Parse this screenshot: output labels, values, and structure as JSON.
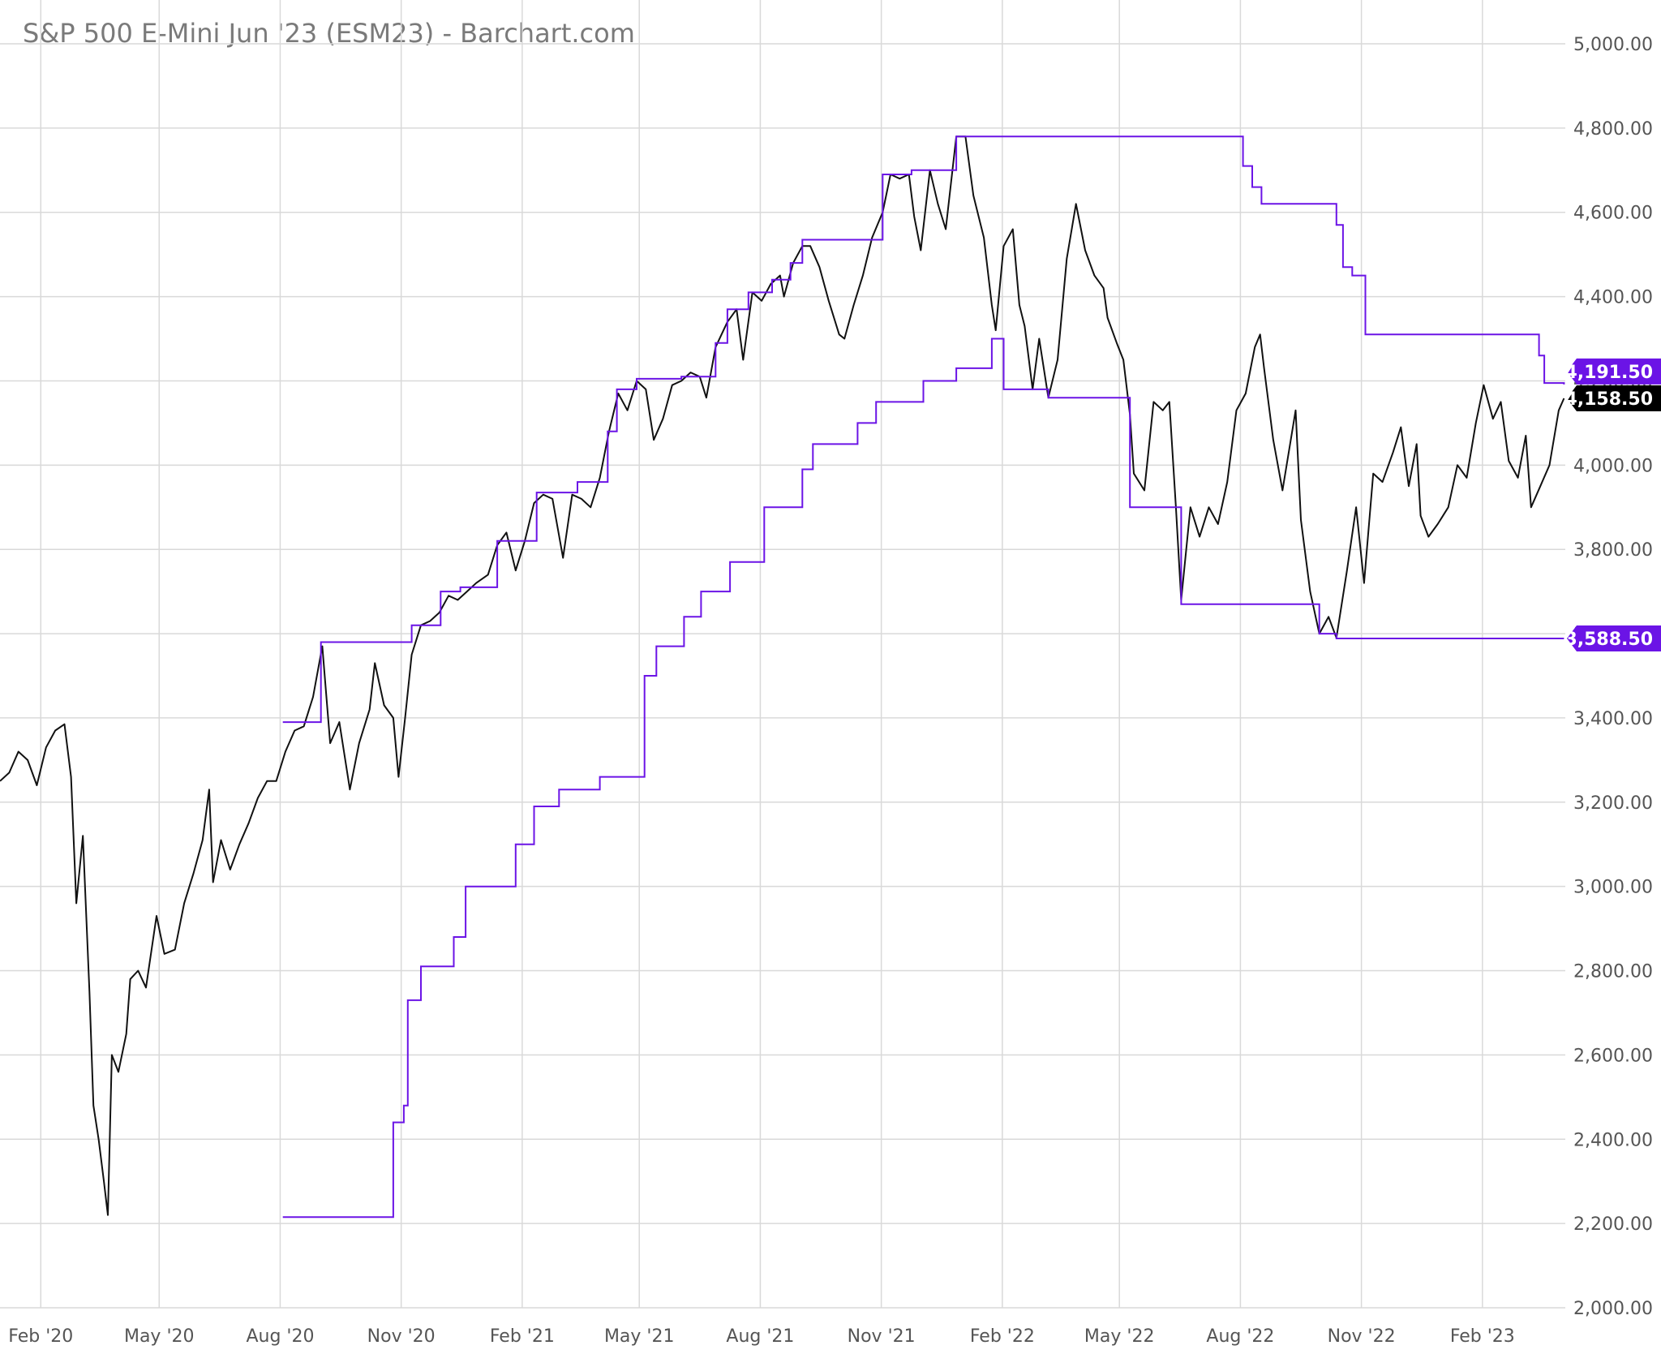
{
  "chart_data": {
    "type": "line",
    "title": "S&P 500 E-Mini Jun '23 (ESM23) - Barchart.com",
    "xlabel": "",
    "ylabel": "",
    "x_range": [
      "2020-01-01",
      "2023-04-05"
    ],
    "ylim": [
      2000,
      5000
    ],
    "y_ticks": [
      "2,000.00",
      "2,200.00",
      "2,400.00",
      "2,600.00",
      "2,800.00",
      "3,000.00",
      "3,200.00",
      "3,400.00",
      "3,600.00",
      "3,800.00",
      "4,000.00",
      "4,200.00",
      "4,400.00",
      "4,600.00",
      "4,800.00",
      "5,000.00"
    ],
    "x_ticks": [
      {
        "date": "2020-02-01",
        "label": "Feb '20"
      },
      {
        "date": "2020-05-01",
        "label": "May '20"
      },
      {
        "date": "2020-08-01",
        "label": "Aug '20"
      },
      {
        "date": "2020-11-01",
        "label": "Nov '20"
      },
      {
        "date": "2021-02-01",
        "label": "Feb '21"
      },
      {
        "date": "2021-05-01",
        "label": "May '21"
      },
      {
        "date": "2021-08-01",
        "label": "Aug '21"
      },
      {
        "date": "2021-11-01",
        "label": "Nov '21"
      },
      {
        "date": "2022-02-01",
        "label": "Feb '22"
      },
      {
        "date": "2022-05-01",
        "label": "May '22"
      },
      {
        "date": "2022-08-01",
        "label": "Aug '22"
      },
      {
        "date": "2022-11-01",
        "label": "Nov '22"
      },
      {
        "date": "2023-02-01",
        "label": "Feb '23"
      }
    ],
    "grid": true,
    "series": [
      {
        "name": "",
        "color": "#111111",
        "points": [
          [
            "2020-01-01",
            3250
          ],
          [
            "2020-01-08",
            3270
          ],
          [
            "2020-01-15",
            3320
          ],
          [
            "2020-01-22",
            3300
          ],
          [
            "2020-01-29",
            3240
          ],
          [
            "2020-02-05",
            3330
          ],
          [
            "2020-02-12",
            3370
          ],
          [
            "2020-02-19",
            3385
          ],
          [
            "2020-02-24",
            3260
          ],
          [
            "2020-02-28",
            2960
          ],
          [
            "2020-03-04",
            3120
          ],
          [
            "2020-03-09",
            2750
          ],
          [
            "2020-03-12",
            2480
          ],
          [
            "2020-03-16",
            2400
          ],
          [
            "2020-03-20",
            2300
          ],
          [
            "2020-03-23",
            2220
          ],
          [
            "2020-03-26",
            2600
          ],
          [
            "2020-03-31",
            2560
          ],
          [
            "2020-04-06",
            2650
          ],
          [
            "2020-04-09",
            2780
          ],
          [
            "2020-04-15",
            2800
          ],
          [
            "2020-04-21",
            2760
          ],
          [
            "2020-04-29",
            2930
          ],
          [
            "2020-05-05",
            2840
          ],
          [
            "2020-05-13",
            2850
          ],
          [
            "2020-05-20",
            2960
          ],
          [
            "2020-05-27",
            3030
          ],
          [
            "2020-06-03",
            3110
          ],
          [
            "2020-06-08",
            3230
          ],
          [
            "2020-06-11",
            3010
          ],
          [
            "2020-06-17",
            3110
          ],
          [
            "2020-06-24",
            3040
          ],
          [
            "2020-07-01",
            3100
          ],
          [
            "2020-07-08",
            3150
          ],
          [
            "2020-07-15",
            3210
          ],
          [
            "2020-07-22",
            3250
          ],
          [
            "2020-07-29",
            3250
          ],
          [
            "2020-08-05",
            3320
          ],
          [
            "2020-08-12",
            3370
          ],
          [
            "2020-08-19",
            3380
          ],
          [
            "2020-08-26",
            3450
          ],
          [
            "2020-09-02",
            3570
          ],
          [
            "2020-09-08",
            3340
          ],
          [
            "2020-09-15",
            3390
          ],
          [
            "2020-09-23",
            3230
          ],
          [
            "2020-09-30",
            3340
          ],
          [
            "2020-10-08",
            3420
          ],
          [
            "2020-10-12",
            3530
          ],
          [
            "2020-10-19",
            3430
          ],
          [
            "2020-10-26",
            3400
          ],
          [
            "2020-10-30",
            3260
          ],
          [
            "2020-11-04",
            3400
          ],
          [
            "2020-11-09",
            3550
          ],
          [
            "2020-11-16",
            3620
          ],
          [
            "2020-11-23",
            3630
          ],
          [
            "2020-11-30",
            3650
          ],
          [
            "2020-12-07",
            3690
          ],
          [
            "2020-12-14",
            3680
          ],
          [
            "2020-12-21",
            3700
          ],
          [
            "2020-12-28",
            3720
          ],
          [
            "2021-01-06",
            3740
          ],
          [
            "2021-01-13",
            3810
          ],
          [
            "2021-01-20",
            3840
          ],
          [
            "2021-01-27",
            3750
          ],
          [
            "2021-02-03",
            3820
          ],
          [
            "2021-02-10",
            3910
          ],
          [
            "2021-02-17",
            3930
          ],
          [
            "2021-02-24",
            3920
          ],
          [
            "2021-03-04",
            3780
          ],
          [
            "2021-03-11",
            3930
          ],
          [
            "2021-03-18",
            3920
          ],
          [
            "2021-03-25",
            3900
          ],
          [
            "2021-04-01",
            3970
          ],
          [
            "2021-04-08",
            4080
          ],
          [
            "2021-04-15",
            4170
          ],
          [
            "2021-04-22",
            4130
          ],
          [
            "2021-04-29",
            4200
          ],
          [
            "2021-05-06",
            4180
          ],
          [
            "2021-05-12",
            4060
          ],
          [
            "2021-05-19",
            4110
          ],
          [
            "2021-05-26",
            4190
          ],
          [
            "2021-06-02",
            4200
          ],
          [
            "2021-06-09",
            4220
          ],
          [
            "2021-06-16",
            4210
          ],
          [
            "2021-06-21",
            4160
          ],
          [
            "2021-06-28",
            4280
          ],
          [
            "2021-07-07",
            4340
          ],
          [
            "2021-07-14",
            4370
          ],
          [
            "2021-07-19",
            4250
          ],
          [
            "2021-07-26",
            4410
          ],
          [
            "2021-08-02",
            4390
          ],
          [
            "2021-08-09",
            4430
          ],
          [
            "2021-08-16",
            4450
          ],
          [
            "2021-08-19",
            4400
          ],
          [
            "2021-08-26",
            4480
          ],
          [
            "2021-09-02",
            4520
          ],
          [
            "2021-09-08",
            4520
          ],
          [
            "2021-09-15",
            4470
          ],
          [
            "2021-09-22",
            4390
          ],
          [
            "2021-09-30",
            4310
          ],
          [
            "2021-10-04",
            4300
          ],
          [
            "2021-10-11",
            4380
          ],
          [
            "2021-10-18",
            4450
          ],
          [
            "2021-10-25",
            4540
          ],
          [
            "2021-11-02",
            4600
          ],
          [
            "2021-11-08",
            4690
          ],
          [
            "2021-11-15",
            4680
          ],
          [
            "2021-11-22",
            4690
          ],
          [
            "2021-11-26",
            4590
          ],
          [
            "2021-12-01",
            4510
          ],
          [
            "2021-12-08",
            4700
          ],
          [
            "2021-12-14",
            4620
          ],
          [
            "2021-12-20",
            4560
          ],
          [
            "2021-12-28",
            4780
          ],
          [
            "2022-01-04",
            4780
          ],
          [
            "2022-01-10",
            4640
          ],
          [
            "2022-01-18",
            4540
          ],
          [
            "2022-01-24",
            4380
          ],
          [
            "2022-01-27",
            4320
          ],
          [
            "2022-02-02",
            4520
          ],
          [
            "2022-02-09",
            4560
          ],
          [
            "2022-02-14",
            4380
          ],
          [
            "2022-02-18",
            4330
          ],
          [
            "2022-02-24",
            4180
          ],
          [
            "2022-03-01",
            4300
          ],
          [
            "2022-03-08",
            4160
          ],
          [
            "2022-03-15",
            4250
          ],
          [
            "2022-03-22",
            4490
          ],
          [
            "2022-03-29",
            4620
          ],
          [
            "2022-04-05",
            4510
          ],
          [
            "2022-04-12",
            4450
          ],
          [
            "2022-04-19",
            4420
          ],
          [
            "2022-04-22",
            4350
          ],
          [
            "2022-04-29",
            4290
          ],
          [
            "2022-05-04",
            4250
          ],
          [
            "2022-05-09",
            4120
          ],
          [
            "2022-05-12",
            3980
          ],
          [
            "2022-05-20",
            3940
          ],
          [
            "2022-05-27",
            4150
          ],
          [
            "2022-06-03",
            4130
          ],
          [
            "2022-06-08",
            4150
          ],
          [
            "2022-06-13",
            3900
          ],
          [
            "2022-06-17",
            3680
          ],
          [
            "2022-06-24",
            3900
          ],
          [
            "2022-07-01",
            3830
          ],
          [
            "2022-07-08",
            3900
          ],
          [
            "2022-07-15",
            3860
          ],
          [
            "2022-07-22",
            3960
          ],
          [
            "2022-07-29",
            4130
          ],
          [
            "2022-08-05",
            4170
          ],
          [
            "2022-08-12",
            4280
          ],
          [
            "2022-08-16",
            4310
          ],
          [
            "2022-08-19",
            4230
          ],
          [
            "2022-08-26",
            4060
          ],
          [
            "2022-09-02",
            3940
          ],
          [
            "2022-09-12",
            4130
          ],
          [
            "2022-09-16",
            3870
          ],
          [
            "2022-09-23",
            3700
          ],
          [
            "2022-09-30",
            3600
          ],
          [
            "2022-10-07",
            3640
          ],
          [
            "2022-10-13",
            3590
          ],
          [
            "2022-10-21",
            3750
          ],
          [
            "2022-10-28",
            3900
          ],
          [
            "2022-11-03",
            3720
          ],
          [
            "2022-11-10",
            3980
          ],
          [
            "2022-11-17",
            3960
          ],
          [
            "2022-11-25",
            4030
          ],
          [
            "2022-12-01",
            4090
          ],
          [
            "2022-12-07",
            3950
          ],
          [
            "2022-12-13",
            4050
          ],
          [
            "2022-12-16",
            3880
          ],
          [
            "2022-12-22",
            3830
          ],
          [
            "2022-12-29",
            3860
          ],
          [
            "2023-01-06",
            3900
          ],
          [
            "2023-01-13",
            4000
          ],
          [
            "2023-01-20",
            3970
          ],
          [
            "2023-01-27",
            4100
          ],
          [
            "2023-02-02",
            4190
          ],
          [
            "2023-02-09",
            4110
          ],
          [
            "2023-02-15",
            4150
          ],
          [
            "2023-02-21",
            4010
          ],
          [
            "2023-02-28",
            3970
          ],
          [
            "2023-03-06",
            4070
          ],
          [
            "2023-03-10",
            3900
          ],
          [
            "2023-03-17",
            3950
          ],
          [
            "2023-03-24",
            4000
          ],
          [
            "2023-03-31",
            4130
          ],
          [
            "2023-04-04",
            4158.5
          ]
        ]
      },
      {
        "name": "",
        "color": "#6b14e6",
        "step": true,
        "points": [
          [
            "2020-08-03",
            3390
          ],
          [
            "2020-09-01",
            3580
          ],
          [
            "2020-11-09",
            3620
          ],
          [
            "2020-12-01",
            3700
          ],
          [
            "2020-12-16",
            3710
          ],
          [
            "2021-01-13",
            3820
          ],
          [
            "2021-02-12",
            3935
          ],
          [
            "2021-03-15",
            3960
          ],
          [
            "2021-04-07",
            4080
          ],
          [
            "2021-04-14",
            4180
          ],
          [
            "2021-04-29",
            4205
          ],
          [
            "2021-06-02",
            4210
          ],
          [
            "2021-06-28",
            4290
          ],
          [
            "2021-07-07",
            4370
          ],
          [
            "2021-07-23",
            4410
          ],
          [
            "2021-08-10",
            4440
          ],
          [
            "2021-08-24",
            4480
          ],
          [
            "2021-09-02",
            4535
          ],
          [
            "2021-11-02",
            4690
          ],
          [
            "2021-11-24",
            4700
          ],
          [
            "2021-12-28",
            4780
          ],
          [
            "2022-08-03",
            4710
          ],
          [
            "2022-08-10",
            4660
          ],
          [
            "2022-08-17",
            4620
          ],
          [
            "2022-10-13",
            4570
          ],
          [
            "2022-10-18",
            4470
          ],
          [
            "2022-10-25",
            4450
          ],
          [
            "2022-11-04",
            4310
          ],
          [
            "2023-03-16",
            4260
          ],
          [
            "2023-03-20",
            4195
          ],
          [
            "2023-04-04",
            4191.5
          ]
        ]
      },
      {
        "name": "",
        "color": "#6b14e6",
        "step": true,
        "points": [
          [
            "2020-08-03",
            2215
          ],
          [
            "2020-10-26",
            2440
          ],
          [
            "2020-11-03",
            2480
          ],
          [
            "2020-11-06",
            2730
          ],
          [
            "2020-11-16",
            2810
          ],
          [
            "2020-12-11",
            2880
          ],
          [
            "2020-12-20",
            3000
          ],
          [
            "2021-01-27",
            3100
          ],
          [
            "2021-02-10",
            3190
          ],
          [
            "2021-03-01",
            3230
          ],
          [
            "2021-04-01",
            3260
          ],
          [
            "2021-05-05",
            3500
          ],
          [
            "2021-05-14",
            3570
          ],
          [
            "2021-06-04",
            3640
          ],
          [
            "2021-06-17",
            3700
          ],
          [
            "2021-07-09",
            3770
          ],
          [
            "2021-08-04",
            3900
          ],
          [
            "2021-09-02",
            3990
          ],
          [
            "2021-09-10",
            4050
          ],
          [
            "2021-10-14",
            4100
          ],
          [
            "2021-10-28",
            4150
          ],
          [
            "2021-12-03",
            4200
          ],
          [
            "2021-12-28",
            4230
          ],
          [
            "2022-01-24",
            4300
          ],
          [
            "2022-02-02",
            4180
          ],
          [
            "2022-03-08",
            4160
          ],
          [
            "2022-05-09",
            3900
          ],
          [
            "2022-06-17",
            3670
          ],
          [
            "2022-09-30",
            3600
          ],
          [
            "2022-10-13",
            3588.5
          ],
          [
            "2023-04-04",
            3588.5
          ]
        ]
      }
    ],
    "price_labels": {
      "last": {
        "value": 4158.5,
        "text": "4,158.50",
        "color": "#000000"
      },
      "upper": {
        "value": 4191.5,
        "text": "4,191.50",
        "color": "#6b14e6"
      },
      "lower": {
        "value": 3588.5,
        "text": "3,588.50",
        "color": "#6b14e6"
      }
    }
  }
}
